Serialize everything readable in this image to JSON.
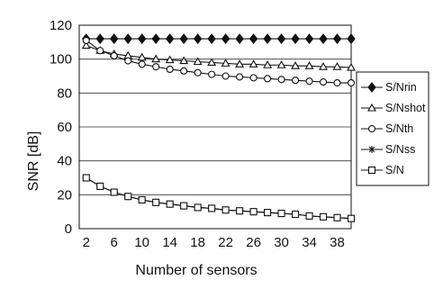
{
  "chart_data": {
    "type": "line",
    "title": "",
    "xlabel": "Number of sensors",
    "ylabel": "SNR [dB]",
    "xlim": [
      1,
      40
    ],
    "ylim": [
      0,
      120
    ],
    "x": [
      2,
      4,
      6,
      8,
      10,
      12,
      14,
      16,
      18,
      20,
      22,
      24,
      26,
      28,
      30,
      32,
      34,
      36,
      38,
      40
    ],
    "x_ticks": [
      2,
      6,
      10,
      14,
      18,
      22,
      26,
      30,
      34,
      38
    ],
    "y_ticks": [
      0,
      20,
      40,
      60,
      80,
      100,
      120
    ],
    "grid": "horizontal",
    "legend_position": "right",
    "series": [
      {
        "name": "S/Nrin",
        "marker": "diamond",
        "values": [
          112,
          112,
          112,
          112,
          112,
          112,
          112,
          112,
          112,
          112,
          112,
          112,
          112,
          112,
          112,
          112,
          112,
          112,
          112,
          112
        ]
      },
      {
        "name": "S/Nshot",
        "marker": "triangle",
        "values": [
          108,
          105,
          103,
          102,
          101,
          100,
          99.5,
          99,
          98.5,
          98,
          97.5,
          97,
          97,
          96.5,
          96.5,
          96,
          96,
          95.5,
          95.5,
          95
        ]
      },
      {
        "name": "S/Nth",
        "marker": "circle",
        "values": [
          111,
          105,
          102,
          99,
          97,
          95.5,
          94,
          93,
          92,
          91,
          90,
          89.5,
          89,
          88.5,
          88,
          87.5,
          87,
          86.5,
          86,
          86
        ]
      },
      {
        "name": "S/Nss",
        "marker": "star",
        "values": [
          30,
          25,
          21.5,
          19,
          17,
          15.5,
          14.5,
          13.5,
          12.5,
          12,
          11,
          10.5,
          10,
          9.5,
          9,
          8.5,
          7.5,
          7,
          6.5,
          6
        ]
      },
      {
        "name": "S/N",
        "marker": "square",
        "values": [
          30,
          25,
          21.5,
          19,
          17,
          15.5,
          14.5,
          13.5,
          12.5,
          12,
          11,
          10.5,
          10,
          9.5,
          9,
          8.5,
          7.5,
          7,
          6.5,
          6
        ]
      }
    ]
  }
}
